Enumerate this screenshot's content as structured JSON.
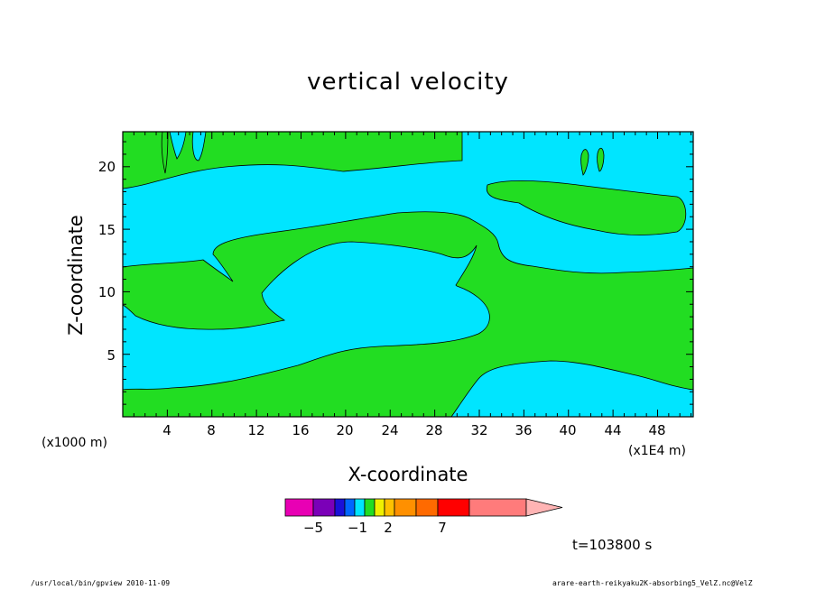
{
  "chart_data": {
    "type": "heatmap",
    "title": "vertical velocity",
    "xlabel": "X-coordinate",
    "ylabel": "Z-coordinate",
    "x_unit_left": "(x1000 m)",
    "x_unit_right": "(x1E4 m)",
    "x_ticks": [
      "4",
      "8",
      "12",
      "16",
      "20",
      "24",
      "28",
      "32",
      "36",
      "40",
      "44",
      "48"
    ],
    "y_ticks": [
      "5",
      "10",
      "15",
      "20"
    ],
    "xlim": [
      0,
      51.2
    ],
    "ylim": [
      0,
      22.8
    ],
    "time_label": "t=103800 s",
    "colorbar": {
      "labels": [
        {
          "value": -5,
          "text": "−5"
        },
        {
          "value": -1,
          "text": "−1"
        },
        {
          "value": 2,
          "text": "2"
        },
        {
          "value": 7,
          "text": "7"
        }
      ],
      "colors": [
        "#e800b4",
        "#7b00b8",
        "#1a10d8",
        "#0066ff",
        "#00e5ff",
        "#22dd22",
        "#f0f000",
        "#ffc000",
        "#ff9000",
        "#ff6a00",
        "#ff0000",
        "#ff7b7b",
        "#ffb4b4"
      ]
    },
    "field_colors": {
      "negative": "#00e5ff",
      "positive": "#22dd22"
    }
  },
  "footer": {
    "left": "/usr/local/bin/gpview  2010-11-09",
    "right": "arare-earth-reikyaku2K-absorbing5_VelZ.nc@VelZ"
  }
}
